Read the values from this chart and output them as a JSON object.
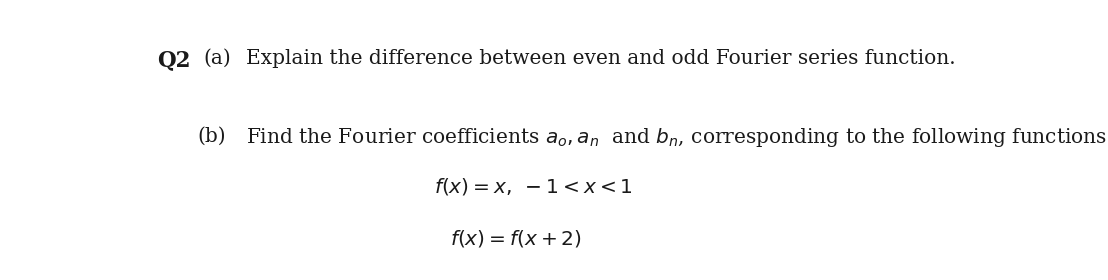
{
  "background_color": "#ffffff",
  "fig_width": 11.08,
  "fig_height": 2.8,
  "dpi": 100,
  "q2_label": "Q2",
  "a_label": "(a)",
  "a_text": "Explain the difference between even and odd Fourier series function.",
  "b_label": "(b)",
  "b_text": "Find the Fourier coefficients $a_o, a_n$  and $b_n$, corresponding to the following functions.",
  "line3_text": "$f(x) = x, \\; -1 < x < 1$",
  "line4_text": "$f(x) = f(x + 2)$",
  "font_size_main": 14.5,
  "font_size_q2": 15.5,
  "text_color": "#1a1a1a",
  "font_family": "DejaVu Serif"
}
